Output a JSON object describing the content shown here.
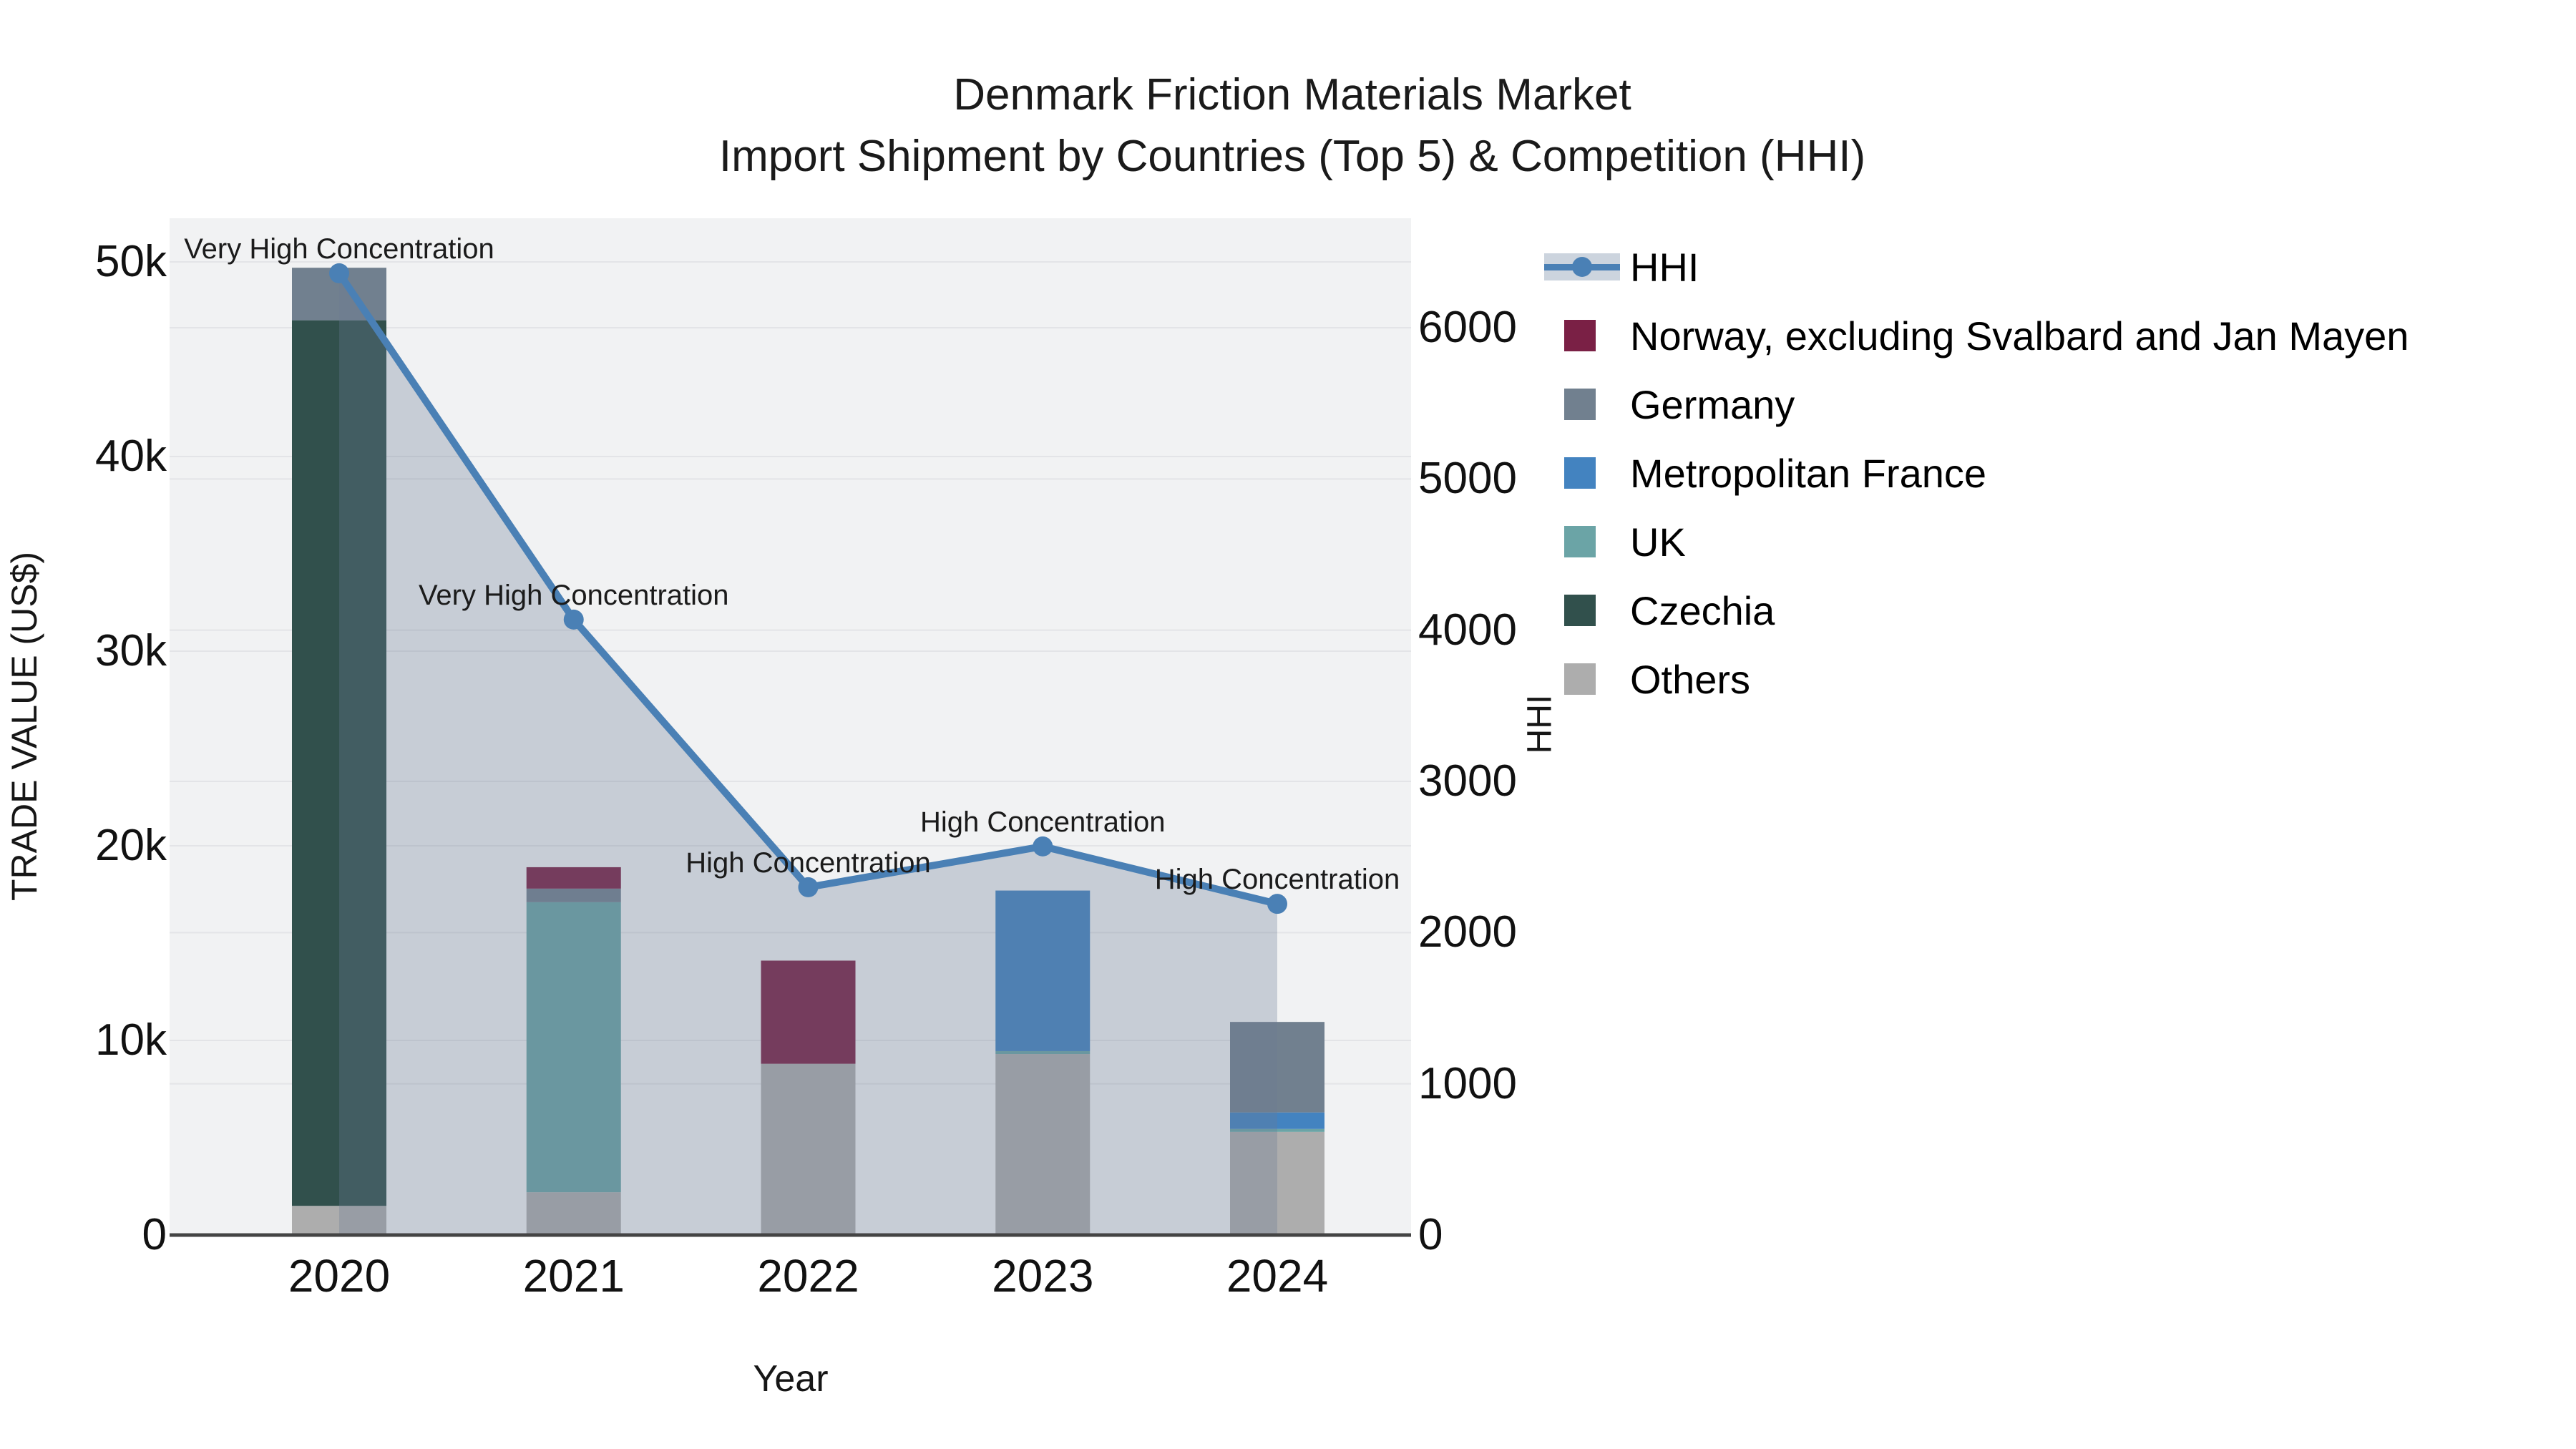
{
  "title": {
    "line1": "Denmark Friction Materials Market",
    "line2": "Import Shipment by Countries (Top 5) & Competition (HHI)"
  },
  "axes": {
    "x": {
      "title": "Year",
      "categories": [
        "2020",
        "2021",
        "2022",
        "2023",
        "2024"
      ]
    },
    "y_left": {
      "title": "TRADE VALUE (US$)",
      "tick_labels": [
        "0",
        "10k",
        "20k",
        "30k",
        "40k",
        "50k"
      ],
      "tick_values": [
        0,
        10000,
        20000,
        30000,
        40000,
        50000
      ],
      "max_value": 50000
    },
    "y_right": {
      "title": "HHI",
      "tick_labels": [
        "0",
        "1000",
        "2000",
        "3000",
        "4000",
        "5000",
        "6000"
      ],
      "tick_values": [
        0,
        1000,
        2000,
        3000,
        4000,
        5000,
        6000
      ],
      "max_value": 6000
    }
  },
  "legend": [
    {
      "label": "HHI",
      "type": "line",
      "color": "#4a80b5",
      "band": "#ccd4de"
    },
    {
      "label": "Norway, excluding Svalbard and Jan Mayen",
      "type": "swatch",
      "color": "#7a2045"
    },
    {
      "label": "Germany",
      "type": "swatch",
      "color": "#71808f"
    },
    {
      "label": "Metropolitan France",
      "type": "swatch",
      "color": "#4383c0"
    },
    {
      "label": "UK",
      "type": "swatch",
      "color": "#6ba4a6"
    },
    {
      "label": "Czechia",
      "type": "swatch",
      "color": "#31504c"
    },
    {
      "label": "Others",
      "type": "swatch",
      "color": "#adadad"
    }
  ],
  "chart_data": {
    "type": "bar",
    "subtype": "stacked bars (trade value, left axis) + line with markers and area fill (HHI, right axis)",
    "categories": [
      "2020",
      "2021",
      "2022",
      "2023",
      "2024"
    ],
    "stack_order_bottom_to_top": [
      "Others",
      "Czechia",
      "UK",
      "Metropolitan France",
      "Germany",
      "Norway, excluding Svalbard and Jan Mayen"
    ],
    "series": [
      {
        "name": "Others",
        "color": "#adadad",
        "values": [
          1500,
          2200,
          8800,
          9300,
          5300
        ]
      },
      {
        "name": "Czechia",
        "color": "#31504c",
        "values": [
          45500,
          0,
          0,
          0,
          0
        ]
      },
      {
        "name": "UK",
        "color": "#6ba4a6",
        "values": [
          0,
          14900,
          0,
          150,
          150
        ]
      },
      {
        "name": "Metropolitan France",
        "color": "#4383c0",
        "values": [
          0,
          0,
          0,
          8250,
          850
        ]
      },
      {
        "name": "Germany",
        "color": "#71808f",
        "values": [
          2700,
          700,
          0,
          0,
          4650
        ]
      },
      {
        "name": "Norway, excluding Svalbard and Jan Mayen",
        "color": "#7a2045",
        "values": [
          0,
          1100,
          5300,
          0,
          0
        ]
      }
    ],
    "bar_totals": [
      49700,
      18900,
      14100,
      17700,
      10950
    ],
    "line": {
      "name": "HHI",
      "color": "#4a80b5",
      "area_fill": "rgba(108,124,150,0.31)",
      "values": [
        6360,
        4070,
        2300,
        2570,
        2190
      ]
    },
    "annotations": [
      "Very High Concentration",
      "Very High Concentration",
      "High Concentration",
      "High Concentration",
      "High Concentration"
    ],
    "title": "Denmark Friction Materials Market — Import Shipment by Countries (Top 5) & Competition (HHI)",
    "xlabel": "Year",
    "ylabel_left": "TRADE VALUE (US$)",
    "ylabel_right": "HHI",
    "ylim_left": [
      0,
      52000
    ],
    "ylim_right": [
      0,
      6500
    ],
    "grid": true,
    "legend_position": "right"
  },
  "colors": {
    "plot_bg": "#f1f2f3",
    "grid": "#e3e4e7",
    "axis_line": "#444444",
    "text": "#111111"
  }
}
